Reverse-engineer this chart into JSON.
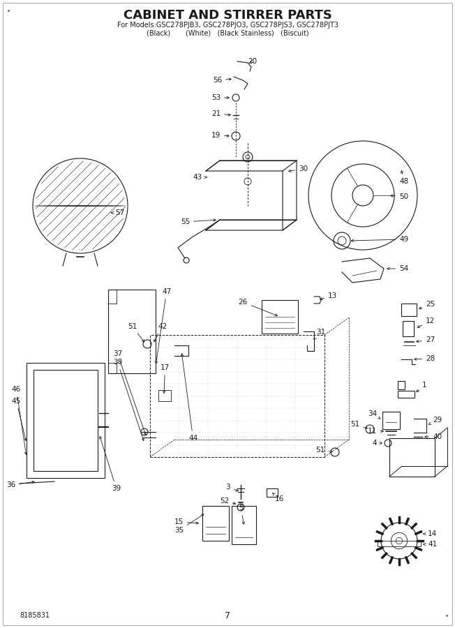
{
  "title_line1": "CABINET AND STIRRER PARTS",
  "title_line2": "For Models:GSC278PJB3, GSC278PJO3, GSC278PJS3, GSC278PJT3",
  "title_line3": "(Black)       (White)   (Black Stainless)   (Biscuit)",
  "part_number": "8185831",
  "page_number": "7",
  "bg_color": "#ffffff",
  "lc": "#1a1a1a",
  "fig_width": 6.52,
  "fig_height": 9.0,
  "dpi": 100
}
